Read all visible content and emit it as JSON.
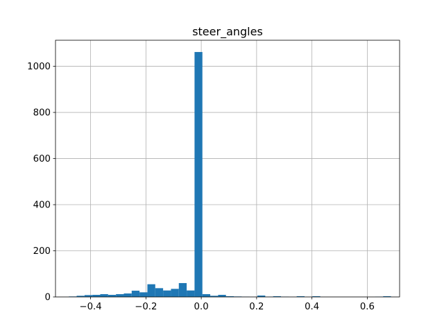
{
  "chart_data": {
    "type": "bar",
    "title": "steer_angles",
    "xlabel": "",
    "ylabel": "",
    "xlim": [
      -0.5268,
      0.7168
    ],
    "ylim": [
      0,
      1113
    ],
    "grid": true,
    "bar_color": "#1f77b4",
    "bin_width": 0.0284,
    "xticks": [
      -0.4,
      -0.2,
      0.0,
      0.2,
      0.4,
      0.6
    ],
    "xtick_labels": [
      "−0.4",
      "−0.2",
      "0.0",
      "0.2",
      "0.4",
      "0.6"
    ],
    "yticks": [
      0,
      200,
      400,
      600,
      800,
      1000
    ],
    "ytick_labels": [
      "0",
      "200",
      "400",
      "600",
      "800",
      "1000"
    ],
    "bins": [
      {
        "x0": -0.4787,
        "count": 2
      },
      {
        "x0": -0.4503,
        "count": 5
      },
      {
        "x0": -0.4219,
        "count": 8
      },
      {
        "x0": -0.3935,
        "count": 9
      },
      {
        "x0": -0.3651,
        "count": 12
      },
      {
        "x0": -0.3367,
        "count": 9
      },
      {
        "x0": -0.3083,
        "count": 12
      },
      {
        "x0": -0.2799,
        "count": 15
      },
      {
        "x0": -0.2515,
        "count": 27
      },
      {
        "x0": -0.2231,
        "count": 20
      },
      {
        "x0": -0.1947,
        "count": 55
      },
      {
        "x0": -0.1663,
        "count": 38
      },
      {
        "x0": -0.1379,
        "count": 28
      },
      {
        "x0": -0.1095,
        "count": 35
      },
      {
        "x0": -0.0811,
        "count": 60
      },
      {
        "x0": -0.0527,
        "count": 28
      },
      {
        "x0": -0.0243,
        "count": 1062
      },
      {
        "x0": 0.0041,
        "count": 12
      },
      {
        "x0": 0.0325,
        "count": 5
      },
      {
        "x0": 0.0609,
        "count": 9
      },
      {
        "x0": 0.0893,
        "count": 3
      },
      {
        "x0": 0.1177,
        "count": 2
      },
      {
        "x0": 0.1461,
        "count": 1
      },
      {
        "x0": 0.1745,
        "count": 0
      },
      {
        "x0": 0.2029,
        "count": 6
      },
      {
        "x0": 0.2313,
        "count": 1
      },
      {
        "x0": 0.2597,
        "count": 3
      },
      {
        "x0": 0.2881,
        "count": 1
      },
      {
        "x0": 0.3165,
        "count": 0
      },
      {
        "x0": 0.3449,
        "count": 3
      },
      {
        "x0": 0.3733,
        "count": 0
      },
      {
        "x0": 0.4017,
        "count": 3
      },
      {
        "x0": 0.4301,
        "count": 0
      },
      {
        "x0": 0.4585,
        "count": 0
      },
      {
        "x0": 0.4869,
        "count": 0
      },
      {
        "x0": 0.5153,
        "count": 0
      },
      {
        "x0": 0.5437,
        "count": 0
      },
      {
        "x0": 0.5721,
        "count": 0
      },
      {
        "x0": 0.6005,
        "count": 0
      },
      {
        "x0": 0.6289,
        "count": 1
      },
      {
        "x0": 0.6573,
        "count": 3
      }
    ]
  }
}
